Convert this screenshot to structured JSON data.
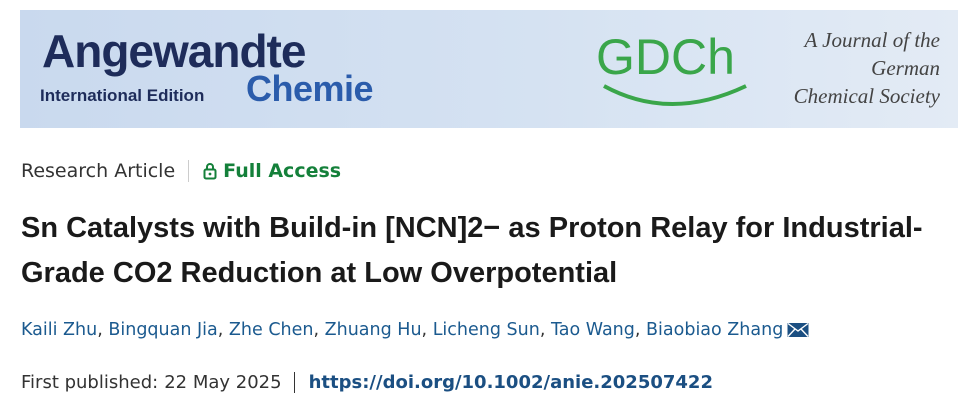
{
  "banner": {
    "journal": "Angewandte",
    "edition": "International Edition",
    "subtitle": "Chemie",
    "society_logo": "GDCh",
    "society_name": [
      "A Journal of the",
      "German",
      "Chemical Society"
    ]
  },
  "article": {
    "type": "Research Article",
    "access": "Full Access",
    "title": "Sn Catalysts with Build-in [NCN]2− as Proton Relay for Industrial-Grade CO2 Reduction at Low Overpotential",
    "authors": [
      "Kaili Zhu",
      "Bingquan Jia",
      "Zhe Chen",
      "Zhuang Hu",
      "Licheng Sun",
      "Tao Wang",
      "Biaobiao Zhang"
    ],
    "published_label": "First published:",
    "published_date": "22 May 2025",
    "doi": "https://doi.org/10.1002/anie.202507422"
  }
}
